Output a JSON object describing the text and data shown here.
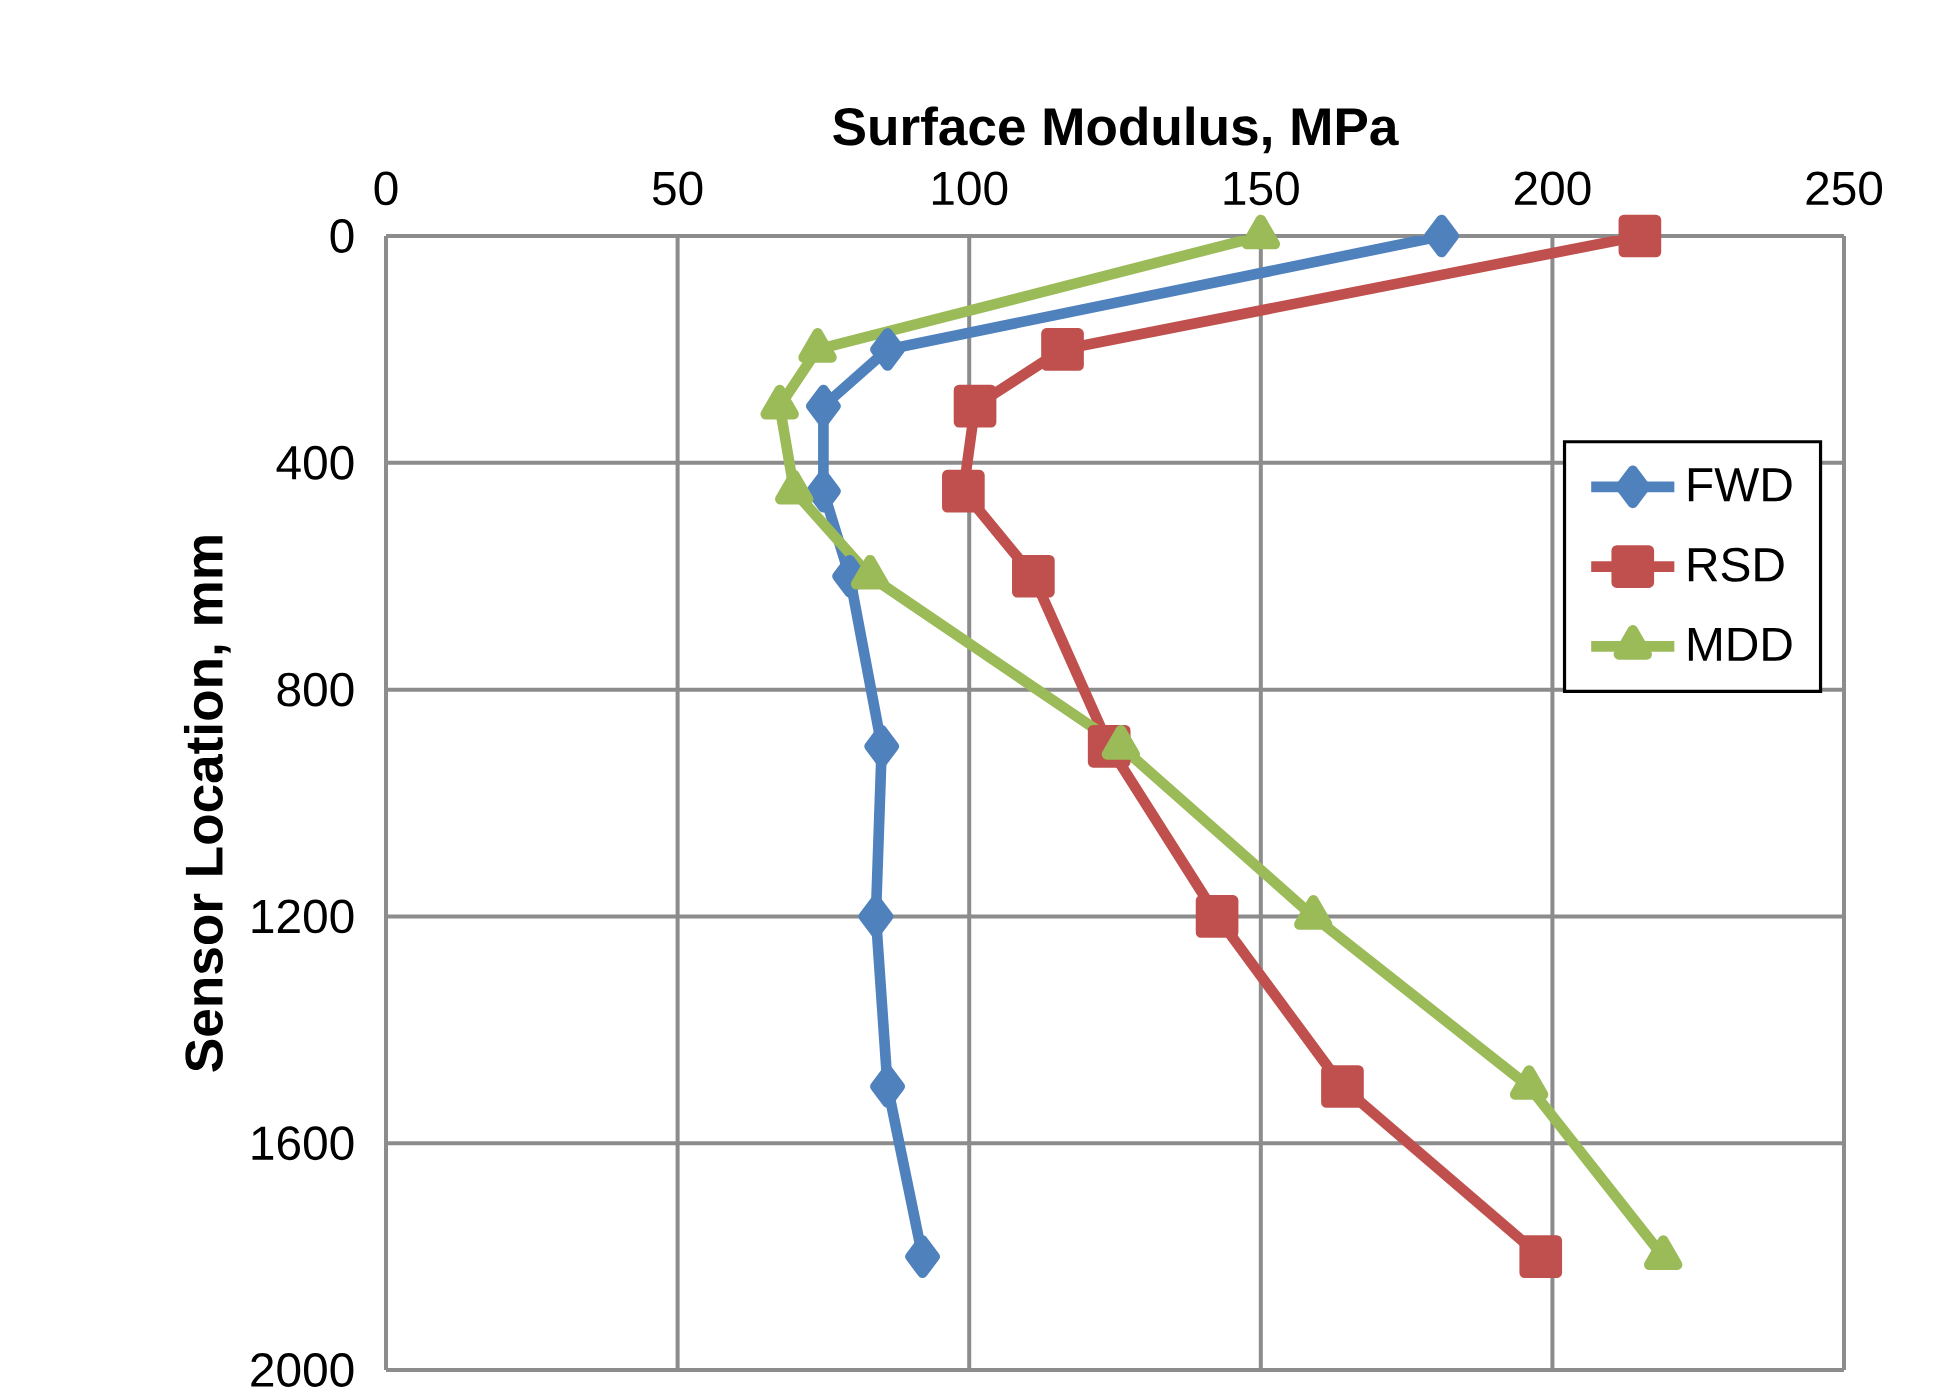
{
  "chart_data": {
    "type": "line",
    "xlabel": "Surface Modulus, MPa",
    "ylabel": "Sensor Location, mm",
    "xlim": [
      0,
      250
    ],
    "xticks": [
      0,
      50,
      100,
      150,
      200,
      250
    ],
    "ylim": [
      2000,
      0
    ],
    "yticks": [
      0,
      400,
      800,
      1200,
      1600,
      2000
    ],
    "grid": true,
    "legend": "right",
    "line_style": "solid",
    "series": [
      {
        "name": "FWD",
        "color": "#4f81bd",
        "marker": "diamond",
        "x": [
          181,
          86,
          75,
          75,
          79.5,
          85,
          84,
          86,
          92
        ],
        "values": [
          0,
          200,
          300,
          450,
          600,
          900,
          1200,
          1500,
          1800
        ]
      },
      {
        "name": "RSD",
        "color": "#c0504d",
        "marker": "square",
        "x": [
          215,
          116,
          101,
          99,
          111,
          124,
          142.5,
          164,
          198
        ],
        "values": [
          0,
          200,
          300,
          450,
          600,
          900,
          1200,
          1500,
          1800
        ]
      },
      {
        "name": "MDD",
        "color": "#9bbb59",
        "marker": "triangle",
        "x": [
          150,
          74,
          67.5,
          70,
          83,
          126,
          159,
          196,
          219
        ],
        "values": [
          0,
          200,
          300,
          450,
          600,
          900,
          1200,
          1500,
          1800
        ]
      }
    ]
  }
}
